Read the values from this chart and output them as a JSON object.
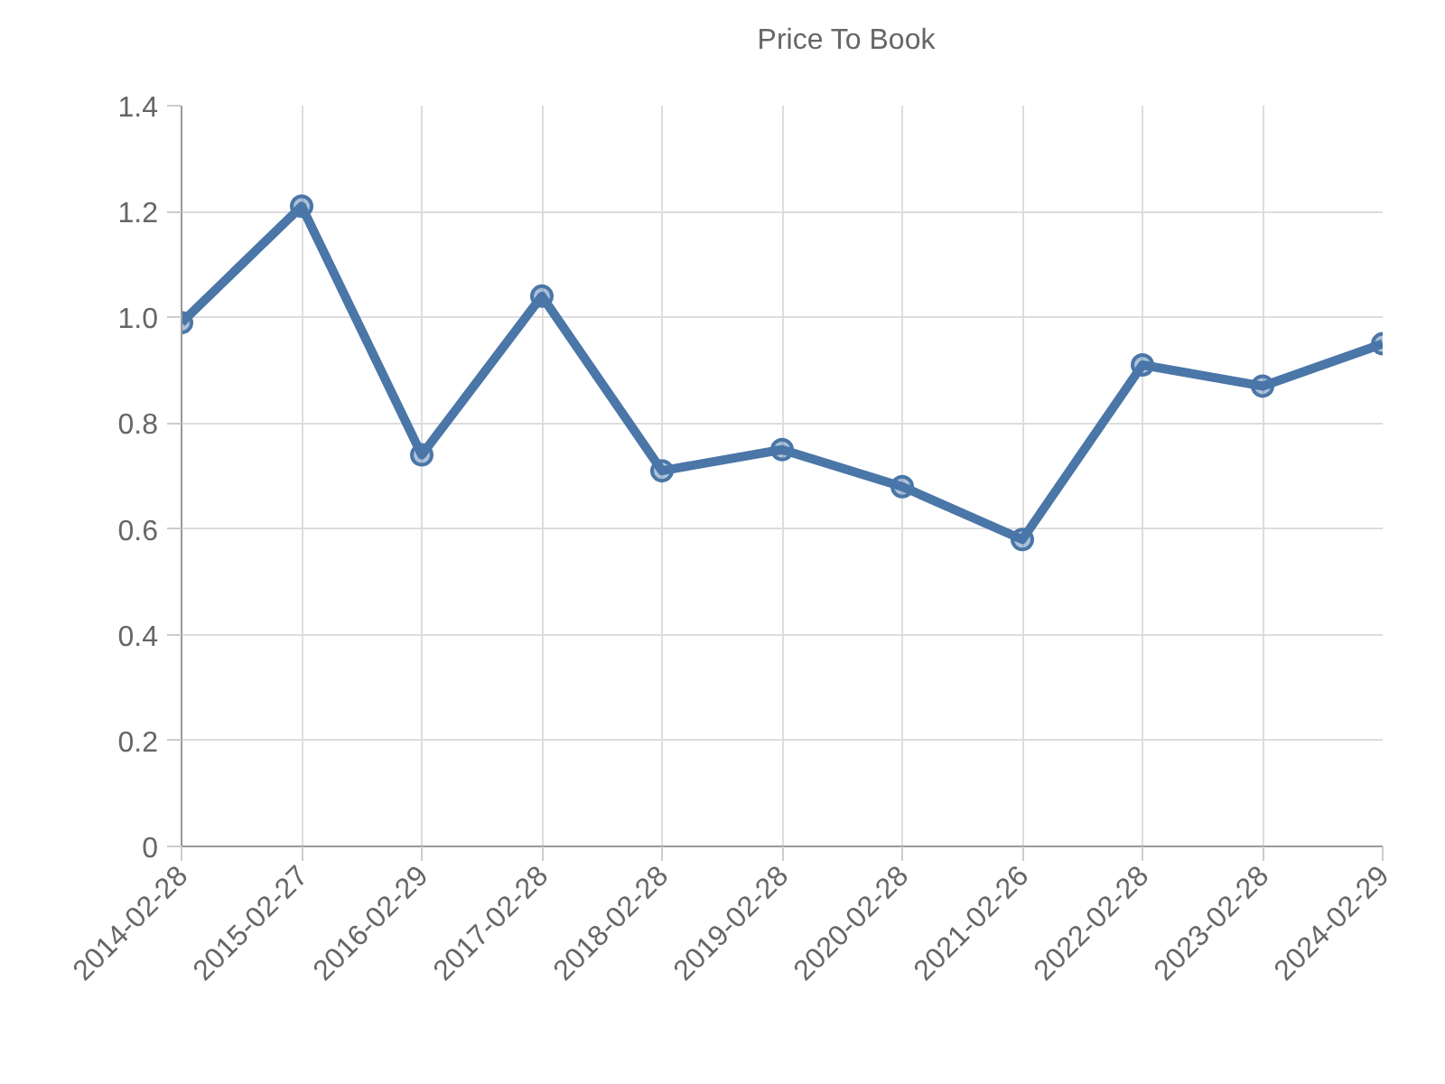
{
  "chart_data": {
    "type": "line",
    "categories": [
      "2014-02-28",
      "2015-02-27",
      "2016-02-29",
      "2017-02-28",
      "2018-02-28",
      "2019-02-28",
      "2020-02-28",
      "2021-02-26",
      "2022-02-28",
      "2023-02-28",
      "2024-02-29"
    ],
    "series": [
      {
        "name": "Price To Book",
        "color": "#4a76a8",
        "values": [
          0.99,
          1.21,
          0.74,
          1.04,
          0.71,
          0.75,
          0.68,
          0.58,
          0.91,
          0.87,
          0.95
        ]
      }
    ],
    "ylim": [
      0,
      1.4
    ],
    "yticks": [
      0,
      0.2,
      0.4,
      0.6,
      0.8,
      {
        "value": 1,
        "label": "1.0"
      },
      1.2,
      1.4
    ],
    "grid": true,
    "legend": "top",
    "marker": "circle",
    "line_style": "solid"
  }
}
